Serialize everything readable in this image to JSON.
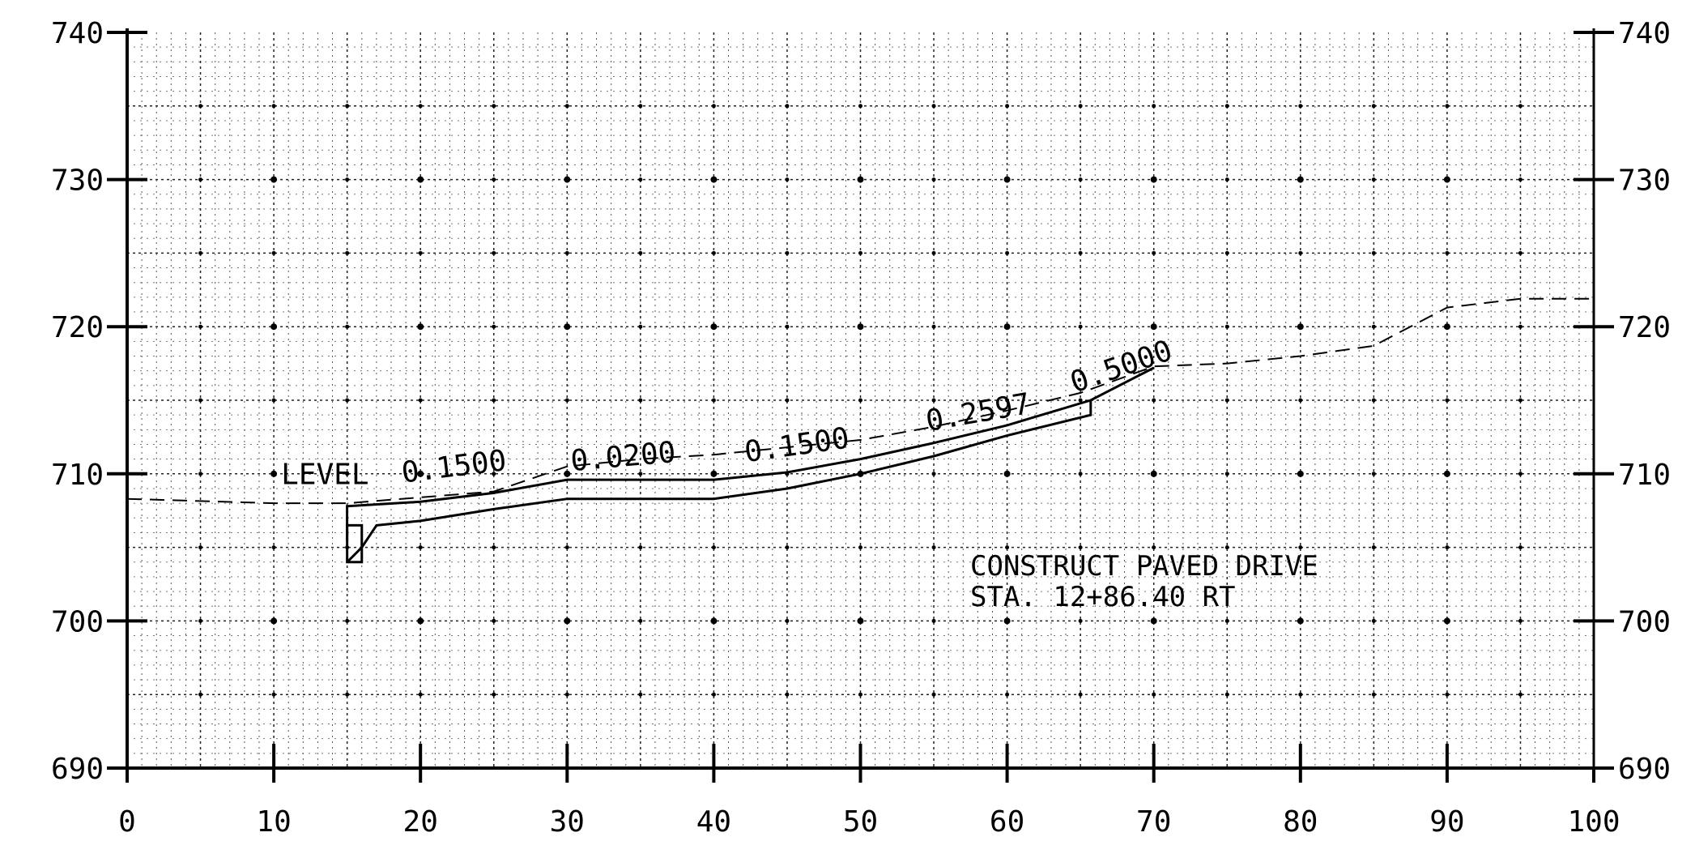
{
  "chart_data": {
    "type": "line",
    "title": "",
    "xlabel": "",
    "ylabel": "",
    "xlim": [
      0,
      100
    ],
    "ylim": [
      690,
      740
    ],
    "grid": true,
    "x_ticks": [
      0,
      10,
      20,
      30,
      40,
      50,
      60,
      70,
      80,
      90,
      100
    ],
    "x_tick_labels": [
      "0",
      "10",
      "20",
      "30",
      "40",
      "50",
      "60",
      "70",
      "80",
      "90",
      "100"
    ],
    "y_ticks": [
      690,
      700,
      710,
      720,
      730,
      740
    ],
    "y_tick_labels": [
      "690",
      "700",
      "710",
      "720",
      "730",
      "740"
    ],
    "series": [
      {
        "style": "dashed",
        "x": [
          0,
          10,
          15,
          20,
          25,
          30,
          35,
          40,
          45,
          50,
          55,
          60,
          65,
          70,
          75,
          80,
          85,
          90,
          95,
          100
        ],
        "y": [
          708.3,
          708.0,
          708.0,
          708.4,
          708.8,
          710.5,
          711.0,
          711.3,
          711.8,
          712.3,
          713.2,
          714.3,
          715.5,
          717.3,
          717.5,
          718.0,
          718.7,
          721.3,
          721.9,
          721.9
        ]
      },
      {
        "style": "solid",
        "x": [
          15.0,
          15.0,
          20.0,
          25.0,
          30.0,
          40.0,
          45.0,
          50.0,
          55.0,
          60.0,
          65.7,
          70.0
        ],
        "y": [
          705.5,
          707.8,
          708.1,
          708.7,
          709.6,
          709.6,
          710.1,
          711.0,
          712.1,
          713.3,
          715.0,
          717.2
        ]
      },
      {
        "style": "solid",
        "x": [
          15.0,
          16.0,
          17.0,
          20.0,
          25.0,
          30.0,
          40.0,
          45.0,
          50.0,
          55.0,
          60.0,
          65.7,
          65.7
        ],
        "y": [
          704.0,
          705.0,
          706.5,
          706.8,
          707.6,
          708.3,
          708.3,
          709.0,
          710.0,
          711.2,
          712.6,
          714.0,
          715.0
        ]
      }
    ],
    "slope_labels": [
      "LEVEL",
      "0.1500",
      "0.0200",
      "0.1500",
      "0.2597",
      "0.5000"
    ],
    "annotation": [
      "CONSTRUCT PAVED DRIVE",
      "STA. 12+86.40 RT"
    ]
  }
}
